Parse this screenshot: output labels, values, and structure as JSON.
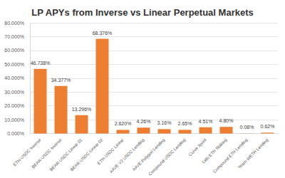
{
  "chart_data": {
    "type": "bar",
    "title": "LP APYs from Inverse vs Linear Perpetual Markets",
    "categories": [
      "ETH-USDC Inverse",
      "BEAR-USDC Inverse",
      "BEAR-USDC Linear 01",
      "BEAR-USDC Linear 02",
      "ETH-USDC Linear",
      "AAVE V2 USDC Lending",
      "AAVE Polygon Lending",
      "Compound USDC Lending",
      "Curve 3pool",
      "Lido ETH Staking",
      "Compound ETH Lending",
      "Yearn WETH Lending"
    ],
    "values": [
      46.738,
      34.377,
      13.296,
      68.376,
      2.62,
      4.26,
      3.16,
      2.65,
      4.51,
      4.8,
      0.08,
      0.62
    ],
    "value_labels": [
      "46.738%",
      "34.377%",
      "13.296%",
      "68.376%",
      "2.620%",
      "4.26%",
      "3.16%",
      "2.65%",
      "4.51%",
      "4.80%",
      "0.08%",
      "0.62%"
    ],
    "color": "#ed7d31",
    "ylim": [
      0,
      80
    ],
    "yticks": [
      {
        "value": 0,
        "label": "0.000%"
      },
      {
        "value": 10,
        "label": "10.000%"
      },
      {
        "value": 20,
        "label": "20.000%"
      },
      {
        "value": 30,
        "label": "30.000%"
      },
      {
        "value": 40,
        "label": "40.000%"
      },
      {
        "value": 50,
        "label": "50.000%"
      },
      {
        "value": 60,
        "label": "60.000%"
      },
      {
        "value": 70,
        "label": "70.000%"
      },
      {
        "value": 80,
        "label": "80.000%"
      }
    ],
    "grid": true,
    "data_labels": true
  }
}
